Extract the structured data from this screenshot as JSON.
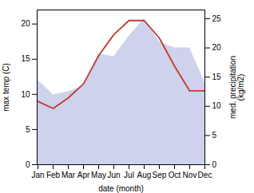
{
  "chart_data": {
    "type": "line",
    "categories": [
      "Jan",
      "Feb",
      "Mar",
      "Apr",
      "May",
      "Jun",
      "Jul",
      "Aug",
      "Sep",
      "Oct",
      "Nov",
      "Dec"
    ],
    "xlabel": "date (month)",
    "ylabel": "max temp (C)",
    "y2label": "med. precipitation\n(kg/m2)",
    "series": [
      {
        "type": "area",
        "axis": "y2",
        "color": "#c5cae9",
        "values": [
          14.5,
          12.0,
          12.5,
          13.5,
          19.0,
          18.5,
          22.0,
          25.0,
          21.0,
          20.0,
          20.0,
          14.0
        ]
      },
      {
        "type": "line",
        "color": "#c0392b",
        "values": [
          9.0,
          8.0,
          9.5,
          11.5,
          15.5,
          18.5,
          20.5,
          20.5,
          18.0,
          14.0,
          10.5,
          10.5
        ]
      }
    ],
    "ylim": [
      0,
      22
    ],
    "yticks": [
      0,
      5,
      10,
      15,
      20
    ],
    "y2lim": [
      0,
      26.5
    ],
    "y2ticks": [
      0,
      5,
      10,
      15,
      20,
      25
    ]
  }
}
